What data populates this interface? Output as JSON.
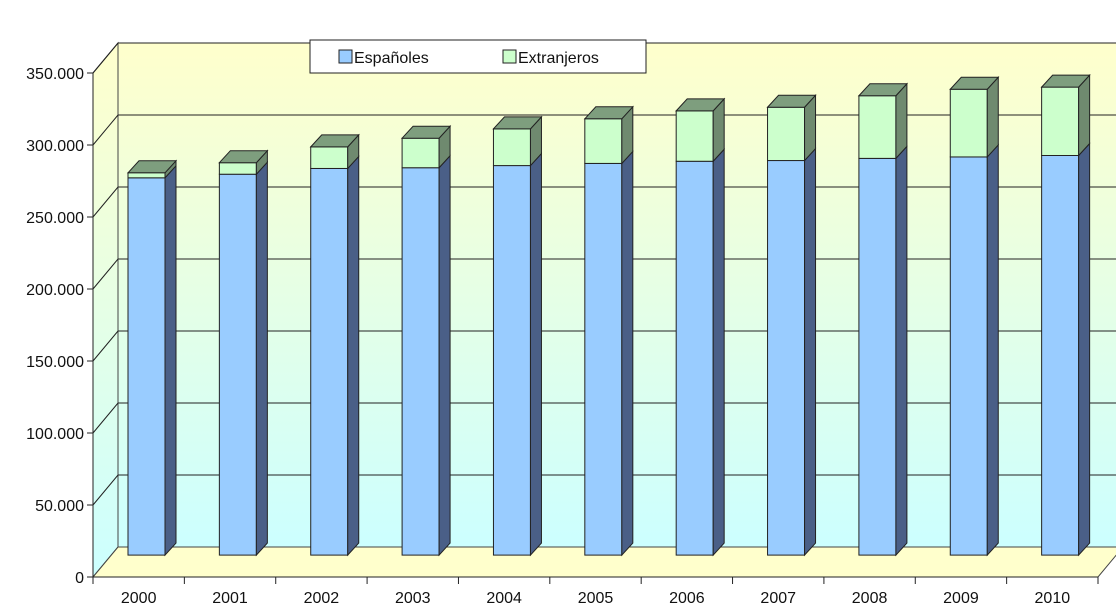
{
  "chart_data": {
    "type": "bar",
    "stacked": true,
    "three_d": true,
    "title": "",
    "xlabel": "",
    "ylabel": "",
    "categories": [
      "2000",
      "2001",
      "2002",
      "2003",
      "2004",
      "2005",
      "2006",
      "2007",
      "2008",
      "2009",
      "2010"
    ],
    "series": [
      {
        "name": "Españoles",
        "color": "#99ccff",
        "values": [
          262000,
          264500,
          268500,
          269000,
          270500,
          272000,
          273500,
          274000,
          275500,
          276500,
          277500
        ]
      },
      {
        "name": "Extranjeros",
        "color": "#ccffcc",
        "values": [
          3500,
          8000,
          15000,
          20500,
          25500,
          31000,
          35000,
          37000,
          43500,
          47000,
          47500
        ]
      }
    ],
    "ylim": [
      0,
      350000
    ],
    "yticks": [
      "0",
      "50.000",
      "100.000",
      "150.000",
      "200.000",
      "250.000",
      "300.000",
      "350.000"
    ],
    "ytick_values": [
      0,
      50000,
      100000,
      150000,
      200000,
      250000,
      300000,
      350000
    ],
    "grid": true,
    "legend": "top-center",
    "background_gradient": [
      "#ffffcc",
      "#ccffff"
    ]
  }
}
